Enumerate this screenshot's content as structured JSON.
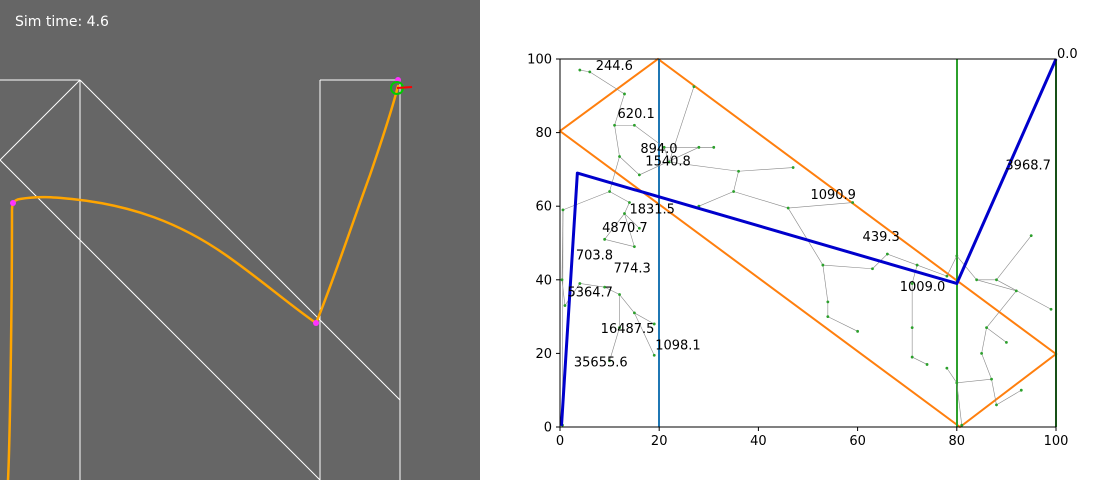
{
  "simulation": {
    "time_label": "Sim time: 4.6",
    "path_color": "#ffa500",
    "marker_color": "#ff33ff",
    "goal_color": "#00cc00",
    "heading_color": "#ff0000"
  },
  "plot": {
    "axes": {
      "xlim": [
        0,
        100
      ],
      "ylim": [
        0,
        100
      ],
      "x_ticks": [
        "0",
        "20",
        "40",
        "60",
        "80",
        "100"
      ],
      "y_ticks": [
        "0",
        "20",
        "40",
        "60",
        "80",
        "100"
      ]
    },
    "colors": {
      "path": "#0000cc",
      "obstacle_orange": "#ff7f0e",
      "obstacle_blue": "#1f77b4",
      "obstacle_green": "#2ca02c",
      "tree_edge": "#888888",
      "tree_node": "#2ca02c"
    },
    "goal_cost_label": "0.0",
    "labels": [
      {
        "text": "244.6",
        "x": 7.2,
        "y": 97
      },
      {
        "text": "620.1",
        "x": 11.6,
        "y": 84
      },
      {
        "text": "894.0",
        "x": 16.2,
        "y": 74.5
      },
      {
        "text": "1540.8",
        "x": 17.2,
        "y": 71
      },
      {
        "text": "1831.5",
        "x": 14,
        "y": 58
      },
      {
        "text": "4870.7",
        "x": 8.5,
        "y": 53
      },
      {
        "text": "703.8",
        "x": 3.2,
        "y": 45.5
      },
      {
        "text": "774.3",
        "x": 10.8,
        "y": 42
      },
      {
        "text": "5364.7",
        "x": 1.5,
        "y": 35.5
      },
      {
        "text": "16487.5",
        "x": 8.2,
        "y": 25.5
      },
      {
        "text": "35655.6",
        "x": 2.8,
        "y": 16.5
      },
      {
        "text": "1098.1",
        "x": 19.2,
        "y": 21
      },
      {
        "text": "1090.9",
        "x": 50.5,
        "y": 62
      },
      {
        "text": "439.3",
        "x": 61,
        "y": 50.5
      },
      {
        "text": "1009.0",
        "x": 68.5,
        "y": 37
      },
      {
        "text": "3968.7",
        "x": 89.8,
        "y": 70
      }
    ],
    "tree_nodes": [
      [
        4,
        97
      ],
      [
        6,
        96.5
      ],
      [
        13,
        90.5
      ],
      [
        11,
        82
      ],
      [
        15,
        82
      ],
      [
        12,
        73.5
      ],
      [
        16,
        68.5
      ],
      [
        21,
        76
      ],
      [
        22,
        72
      ],
      [
        27,
        92.5
      ],
      [
        31,
        76
      ],
      [
        28,
        76
      ],
      [
        36,
        69.5
      ],
      [
        47,
        70.5
      ],
      [
        35,
        64
      ],
      [
        28,
        60
      ],
      [
        10,
        64
      ],
      [
        14,
        61
      ],
      [
        13,
        58
      ],
      [
        9,
        51
      ],
      [
        15,
        49
      ],
      [
        16,
        54
      ],
      [
        0.6,
        59
      ],
      [
        0.4,
        40
      ],
      [
        1,
        33
      ],
      [
        4,
        39
      ],
      [
        9,
        38
      ],
      [
        12,
        36
      ],
      [
        15,
        31
      ],
      [
        19,
        28
      ],
      [
        12,
        27
      ],
      [
        10,
        18
      ],
      [
        19,
        19.5
      ],
      [
        46,
        59.5
      ],
      [
        59,
        61
      ],
      [
        53,
        44
      ],
      [
        63,
        43
      ],
      [
        54,
        34
      ],
      [
        54,
        30
      ],
      [
        60,
        26
      ],
      [
        66,
        47
      ],
      [
        72,
        44
      ],
      [
        71,
        39
      ],
      [
        71,
        27
      ],
      [
        71,
        19
      ],
      [
        74,
        17
      ],
      [
        78,
        41
      ],
      [
        80,
        46.5
      ],
      [
        84,
        40
      ],
      [
        88,
        40
      ],
      [
        95,
        52
      ],
      [
        99,
        32
      ],
      [
        92,
        37
      ],
      [
        86,
        27
      ],
      [
        85,
        20
      ],
      [
        87,
        13
      ],
      [
        80,
        12
      ],
      [
        78,
        16
      ],
      [
        88,
        6
      ],
      [
        93,
        10
      ],
      [
        90,
        23
      ],
      [
        81,
        0.5
      ],
      [
        0.5,
        0.5
      ]
    ],
    "tree_edges": [
      [
        0,
        1
      ],
      [
        1,
        2
      ],
      [
        2,
        3
      ],
      [
        3,
        4
      ],
      [
        3,
        5
      ],
      [
        5,
        6
      ],
      [
        4,
        7
      ],
      [
        7,
        8
      ],
      [
        8,
        9
      ],
      [
        7,
        10
      ],
      [
        10,
        11
      ],
      [
        8,
        12
      ],
      [
        12,
        13
      ],
      [
        12,
        14
      ],
      [
        14,
        15
      ],
      [
        5,
        16
      ],
      [
        16,
        17
      ],
      [
        17,
        18
      ],
      [
        18,
        19
      ],
      [
        19,
        20
      ],
      [
        18,
        21
      ],
      [
        16,
        22
      ],
      [
        22,
        23
      ],
      [
        23,
        24
      ],
      [
        24,
        25
      ],
      [
        25,
        26
      ],
      [
        26,
        27
      ],
      [
        27,
        28
      ],
      [
        28,
        29
      ],
      [
        27,
        30
      ],
      [
        30,
        31
      ],
      [
        28,
        32
      ],
      [
        14,
        33
      ],
      [
        33,
        34
      ],
      [
        33,
        35
      ],
      [
        35,
        36
      ],
      [
        35,
        37
      ],
      [
        37,
        38
      ],
      [
        38,
        39
      ],
      [
        36,
        40
      ],
      [
        40,
        41
      ],
      [
        41,
        42
      ],
      [
        42,
        43
      ],
      [
        43,
        44
      ],
      [
        44,
        45
      ],
      [
        41,
        46
      ],
      [
        46,
        47
      ],
      [
        47,
        48
      ],
      [
        48,
        49
      ],
      [
        49,
        50
      ],
      [
        49,
        51
      ],
      [
        48,
        52
      ],
      [
        52,
        53
      ],
      [
        53,
        54
      ],
      [
        54,
        55
      ],
      [
        55,
        56
      ],
      [
        56,
        57
      ],
      [
        55,
        58
      ],
      [
        58,
        59
      ],
      [
        53,
        60
      ],
      [
        56,
        61
      ],
      [
        22,
        62
      ],
      [
        6,
        11
      ],
      [
        20,
        18
      ]
    ],
    "path_points": [
      [
        0.3,
        0.3
      ],
      [
        3.5,
        69
      ],
      [
        80,
        39
      ],
      [
        100,
        100
      ]
    ]
  }
}
